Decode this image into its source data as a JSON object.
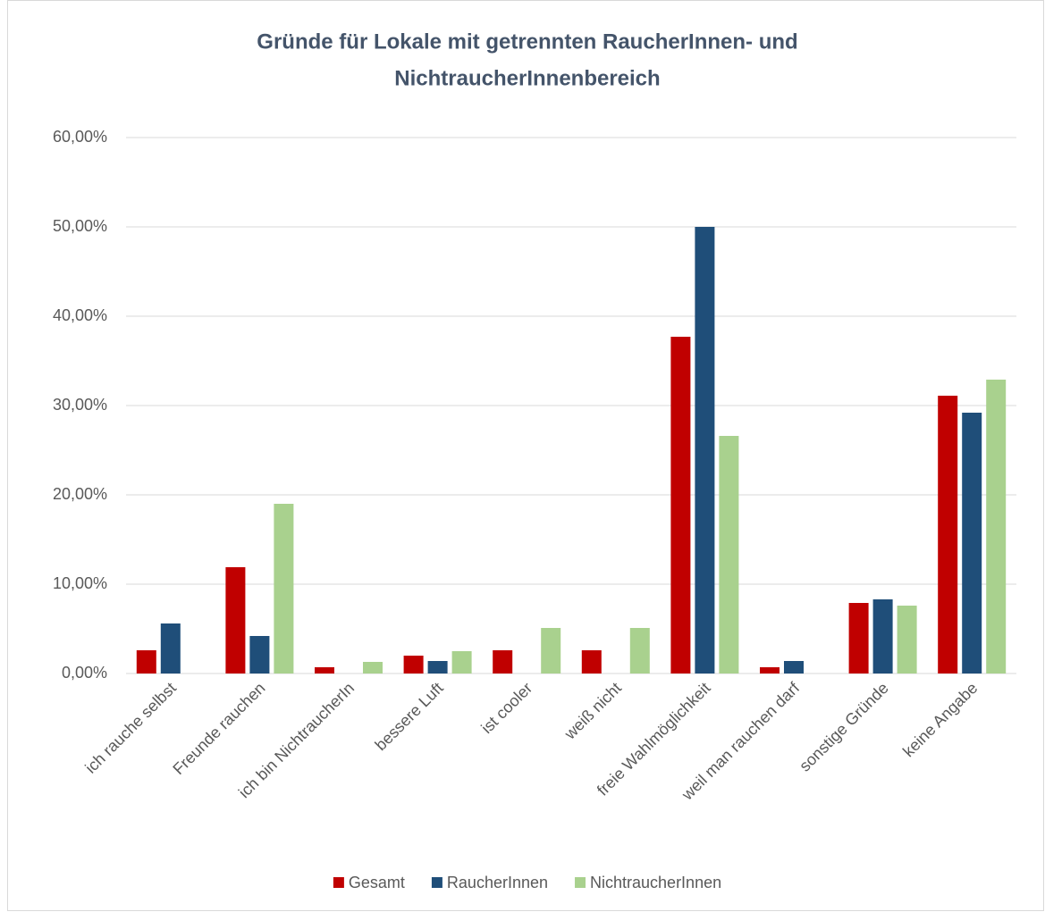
{
  "chart_data": {
    "type": "bar",
    "title": [
      "Gründe für Lokale mit getrennten RaucherInnen- und",
      "NichtraucherInnenbereich"
    ],
    "categories": [
      "ich rauche selbst",
      "Freunde rauchen",
      "ich bin NichtraucherIn",
      "bessere Luft",
      "ist  cooler",
      "weiß nicht",
      "freie Wahlmöglichkeit",
      "weil man rauchen darf",
      "sonstige Gründe",
      "keine Angabe"
    ],
    "series": [
      {
        "name": "Gesamt",
        "color": "#c00000",
        "values": [
          2.6,
          11.9,
          0.7,
          2.0,
          2.6,
          2.6,
          37.7,
          0.7,
          7.9,
          31.1
        ]
      },
      {
        "name": "RaucherInnen",
        "color": "#1f4e79",
        "values": [
          5.6,
          4.2,
          0,
          1.4,
          0,
          0,
          50.0,
          1.4,
          8.3,
          29.2
        ]
      },
      {
        "name": "NichtraucherInnen",
        "color": "#a9d18e",
        "values": [
          0,
          19.0,
          1.3,
          2.5,
          5.1,
          5.1,
          26.6,
          0,
          7.6,
          32.9
        ]
      }
    ],
    "ylim": [
      0,
      60
    ],
    "yticks": [
      {
        "value": 0,
        "label": "0,00%"
      },
      {
        "value": 10,
        "label": "10,00%"
      },
      {
        "value": 20,
        "label": "20,00%"
      },
      {
        "value": 30,
        "label": "30,00%"
      },
      {
        "value": 40,
        "label": "40,00%"
      },
      {
        "value": 50,
        "label": "50,00%"
      },
      {
        "value": 60,
        "label": "60,00%"
      }
    ],
    "grid": true,
    "legend": "bottom"
  }
}
